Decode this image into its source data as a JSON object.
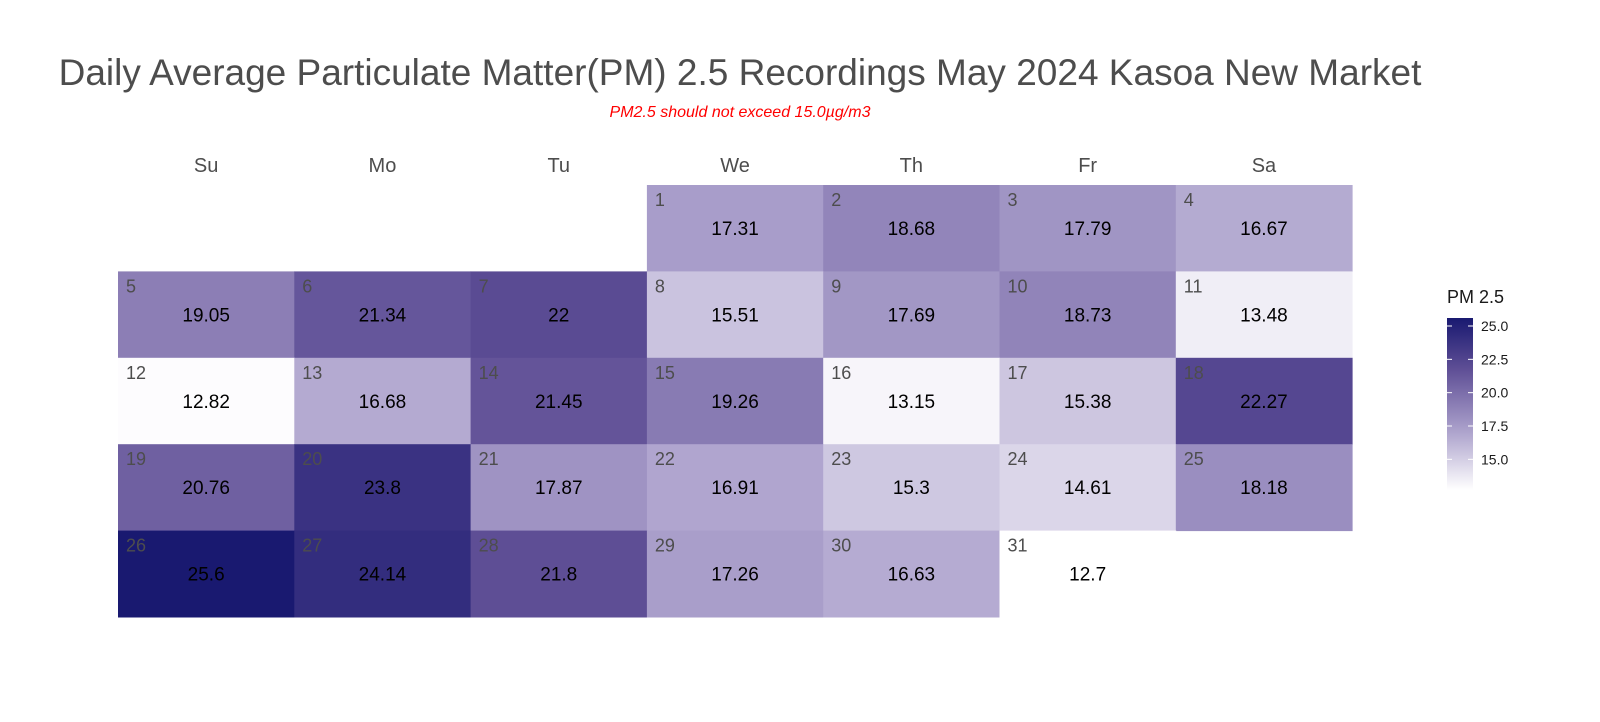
{
  "chart_data": {
    "type": "heatmap",
    "subtype": "calendar",
    "title": "Daily Average Particulate Matter(PM) 2.5 Recordings May 2024 Kasoa New Market",
    "subtitle": "PM2.5 should not exceed 15.0µg/m3",
    "weekdays": [
      "Su",
      "Mo",
      "Tu",
      "We",
      "Th",
      "Fr",
      "Sa"
    ],
    "first_weekday_index": 3,
    "days": [
      1,
      2,
      3,
      4,
      5,
      6,
      7,
      8,
      9,
      10,
      11,
      12,
      13,
      14,
      15,
      16,
      17,
      18,
      19,
      20,
      21,
      22,
      23,
      24,
      25,
      26,
      27,
      28,
      29,
      30,
      31
    ],
    "values": [
      17.31,
      18.68,
      17.79,
      16.67,
      19.05,
      21.34,
      22,
      15.51,
      17.69,
      18.73,
      13.48,
      12.82,
      16.68,
      21.45,
      19.26,
      13.15,
      15.38,
      22.27,
      20.76,
      23.8,
      17.87,
      16.91,
      15.3,
      14.61,
      18.18,
      25.6,
      24.14,
      21.8,
      17.26,
      16.63,
      12.7
    ],
    "value_labels": [
      "17.31",
      "18.68",
      "17.79",
      "16.67",
      "19.05",
      "21.34",
      "22",
      "15.51",
      "17.69",
      "18.73",
      "13.48",
      "12.82",
      "16.68",
      "21.45",
      "19.26",
      "13.15",
      "15.38",
      "22.27",
      "20.76",
      "23.8",
      "17.87",
      "16.91",
      "15.3",
      "14.61",
      "18.18",
      "25.6",
      "24.14",
      "21.8",
      "17.26",
      "16.63",
      "12.7"
    ],
    "legend": {
      "title": "PM 2.5",
      "ticks": [
        25.0,
        22.5,
        20.0,
        17.5,
        15.0
      ],
      "tick_labels": [
        "25.0",
        "22.5",
        "20.0",
        "17.5",
        "15.0"
      ],
      "range": [
        12.7,
        25.6
      ],
      "placement": "right",
      "low_color": "#ffffff",
      "high_color": "#191970"
    }
  }
}
